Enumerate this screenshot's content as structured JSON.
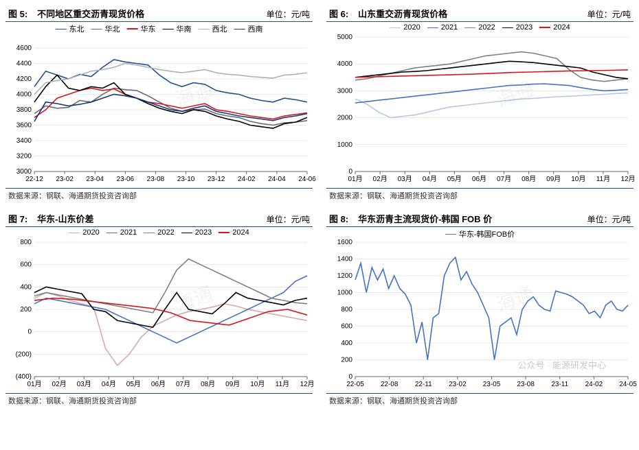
{
  "source_text": "数据来源：钢联、海通期货投资咨询部",
  "footer_watermark": "公众号 · 能源研发中心",
  "panels": {
    "fig5": {
      "fig_label": "图 5:",
      "title": "不同地区重交沥青现货价格",
      "unit": "单位：元/吨",
      "type": "line",
      "ylim": [
        3000,
        4600
      ],
      "ytick_step": 200,
      "x_labels": [
        "22-12",
        "23-02",
        "23-04",
        "23-06",
        "23-08",
        "23-10",
        "23-12",
        "24-02",
        "24-04",
        "24-06"
      ],
      "grid_color": "#d0d0d0",
      "series": [
        {
          "name": "东北",
          "color": "#1f4e9b",
          "width": 1.5,
          "y": [
            4100,
            4300,
            4250,
            4200,
            4260,
            4230,
            4350,
            4450,
            4420,
            4400,
            4380,
            4250,
            4150,
            4100,
            4150,
            4130,
            4050,
            4020,
            4000,
            3950,
            3920,
            3900,
            3950,
            3930,
            3900
          ]
        },
        {
          "name": "华北",
          "color": "#6a6a6a",
          "width": 1.5,
          "y": [
            3750,
            3850,
            3820,
            3830,
            3920,
            3900,
            4000,
            4080,
            4060,
            4050,
            3980,
            3900,
            3820,
            3780,
            3800,
            3810,
            3750,
            3720,
            3700,
            3650,
            3620,
            3600,
            3630,
            3640,
            3660
          ]
        },
        {
          "name": "华东",
          "color": "#d5161f",
          "width": 2.0,
          "y": [
            3700,
            3800,
            3950,
            4000,
            4050,
            4080,
            4050,
            4070,
            4000,
            3950,
            3900,
            3880,
            3850,
            3820,
            3850,
            3880,
            3800,
            3780,
            3750,
            3720,
            3700,
            3680,
            3720,
            3740,
            3760
          ]
        },
        {
          "name": "华南",
          "color": "#000000",
          "width": 1.8,
          "y": [
            3900,
            4100,
            4250,
            4080,
            4050,
            4100,
            4080,
            4150,
            4000,
            3950,
            3880,
            3820,
            3780,
            3750,
            3800,
            3780,
            3720,
            3680,
            3650,
            3600,
            3580,
            3560,
            3620,
            3640,
            3700
          ]
        },
        {
          "name": "西北",
          "color": "#b0b0b0",
          "width": 1.5,
          "y": [
            4000,
            4150,
            4180,
            4200,
            4250,
            4300,
            4320,
            4350,
            4400,
            4380,
            4350,
            4320,
            4300,
            4280,
            4300,
            4320,
            4280,
            4260,
            4250,
            4230,
            4220,
            4210,
            4250,
            4260,
            4280
          ]
        },
        {
          "name": "西南",
          "color": "#143a7a",
          "width": 1.5,
          "y": [
            3650,
            3900,
            3880,
            3850,
            3870,
            3900,
            3950,
            4000,
            3980,
            3950,
            3900,
            3850,
            3800,
            3780,
            3820,
            3850,
            3780,
            3750,
            3720,
            3700,
            3680,
            3660,
            3700,
            3720,
            3750
          ]
        }
      ],
      "legend_cols": 3
    },
    "fig6": {
      "fig_label": "图 6:",
      "title": "山东重交沥青现货价格",
      "unit": "单位：元/吨",
      "type": "line",
      "ylim": [
        0,
        5000
      ],
      "ytick_step": 1000,
      "x_labels": [
        "01月",
        "02月",
        "03月",
        "04月",
        "05月",
        "06月",
        "07月",
        "08月",
        "09月",
        "10月",
        "11月",
        "12月"
      ],
      "grid_color": "#d0d0d0",
      "series": [
        {
          "name": "2020",
          "color": "#b4c7e7",
          "width": 1.5,
          "y": [
            2700,
            2500,
            2200,
            2000,
            2050,
            2100,
            2200,
            2300,
            2400,
            2450,
            2500,
            2550,
            2600,
            2650,
            2700,
            2720,
            2750,
            2780,
            2800,
            2820,
            2850,
            2870,
            2900,
            2920
          ]
        },
        {
          "name": "2021",
          "color": "#4472c4",
          "width": 1.5,
          "y": [
            2550,
            2600,
            2650,
            2700,
            2750,
            2800,
            2850,
            2900,
            2950,
            3000,
            3050,
            3100,
            3150,
            3200,
            3220,
            3250,
            3260,
            3230,
            3200,
            3120,
            3050,
            3000,
            3020,
            3050
          ]
        },
        {
          "name": "2022",
          "color": "#7f7f7f",
          "width": 1.5,
          "y": [
            3400,
            3450,
            3550,
            3650,
            3750,
            3850,
            3900,
            3950,
            4000,
            4100,
            4200,
            4300,
            4350,
            4400,
            4450,
            4400,
            4300,
            4200,
            3800,
            3500,
            3400,
            3350,
            3400,
            3450
          ]
        },
        {
          "name": "2023",
          "color": "#000000",
          "width": 1.8,
          "y": [
            3500,
            3550,
            3600,
            3650,
            3700,
            3720,
            3750,
            3800,
            3850,
            3900,
            3950,
            4000,
            4050,
            4100,
            4080,
            4050,
            4000,
            3950,
            3900,
            3850,
            3700,
            3600,
            3500,
            3450
          ]
        },
        {
          "name": "2024",
          "color": "#d5161f",
          "width": 2.0,
          "y": [
            3500,
            3520,
            3540,
            3560,
            3580,
            3600,
            3620,
            3650,
            3680,
            3700,
            3720,
            3740,
            3750,
            3760,
            3780
          ]
        }
      ],
      "legend_cols": 5
    },
    "fig7": {
      "fig_label": "图 7:",
      "title": "华东-山东价差",
      "unit": "单位：元/吨",
      "type": "line",
      "ylim": [
        -400,
        800
      ],
      "ytick_step": 200,
      "x_labels": [
        "01月",
        "02月",
        "03月",
        "04月",
        "05月",
        "06月",
        "07月",
        "08月",
        "09月",
        "10月",
        "11月",
        "12月"
      ],
      "zero_line": true,
      "grid_color": "#d0d0d0",
      "paren_negatives": true,
      "series": [
        {
          "name": "2020",
          "color": "#dba8a8",
          "width": 1.3,
          "y": [
            300,
            350,
            320,
            280,
            250,
            220,
            -150,
            -300,
            -200,
            -50,
            50,
            100,
            150,
            180,
            200,
            220,
            250,
            230,
            200,
            180,
            160,
            140,
            120,
            100
          ]
        },
        {
          "name": "2021",
          "color": "#4472c4",
          "width": 1.5,
          "y": [
            250,
            300,
            280,
            260,
            240,
            220,
            200,
            150,
            100,
            50,
            0,
            -50,
            -100,
            -50,
            0,
            50,
            100,
            150,
            200,
            250,
            300,
            350,
            450,
            500
          ]
        },
        {
          "name": "2022",
          "color": "#7f7f7f",
          "width": 1.5,
          "y": [
            320,
            350,
            330,
            310,
            290,
            270,
            250,
            230,
            210,
            190,
            170,
            350,
            550,
            650,
            600,
            550,
            500,
            450,
            400,
            350,
            300,
            280,
            260,
            250
          ]
        },
        {
          "name": "2023",
          "color": "#000000",
          "width": 1.8,
          "y": [
            350,
            400,
            380,
            360,
            340,
            200,
            180,
            100,
            80,
            60,
            40,
            200,
            350,
            200,
            180,
            160,
            250,
            350,
            300,
            280,
            260,
            240,
            280,
            300
          ]
        },
        {
          "name": "2024",
          "color": "#d5161f",
          "width": 2.0,
          "y": [
            280,
            300,
            290,
            270,
            250,
            230,
            210,
            170,
            100,
            80,
            60,
            120,
            180,
            200,
            150
          ]
        }
      ],
      "legend_cols": 5
    },
    "fig8": {
      "fig_label": "图 8:",
      "title": "华东沥青主流现货价-韩国 FOB 价",
      "unit": "单位：元/吨",
      "type": "line",
      "ylim": [
        0,
        1600
      ],
      "ytick_step": 200,
      "x_labels": [
        "22-05",
        "22-08",
        "22-11",
        "23-02",
        "23-05",
        "23-08",
        "23-11",
        "24-02",
        "24-05"
      ],
      "grid_color": "#d0d0d0",
      "series": [
        {
          "name": "华东-韩国FOB价",
          "color": "#4472c4",
          "width": 1.5,
          "y": [
            1150,
            1350,
            1000,
            1300,
            1150,
            1280,
            1050,
            1200,
            1050,
            980,
            850,
            400,
            650,
            200,
            700,
            750,
            1200,
            1350,
            1420,
            1150,
            1250,
            1100,
            1000,
            850,
            700,
            200,
            600,
            650,
            700,
            500,
            800,
            900,
            950,
            850,
            800,
            780,
            1020,
            1000,
            980,
            950,
            900,
            850,
            750,
            780,
            700,
            850,
            900,
            800,
            780,
            850
          ]
        }
      ],
      "legend_cols": 1
    }
  }
}
